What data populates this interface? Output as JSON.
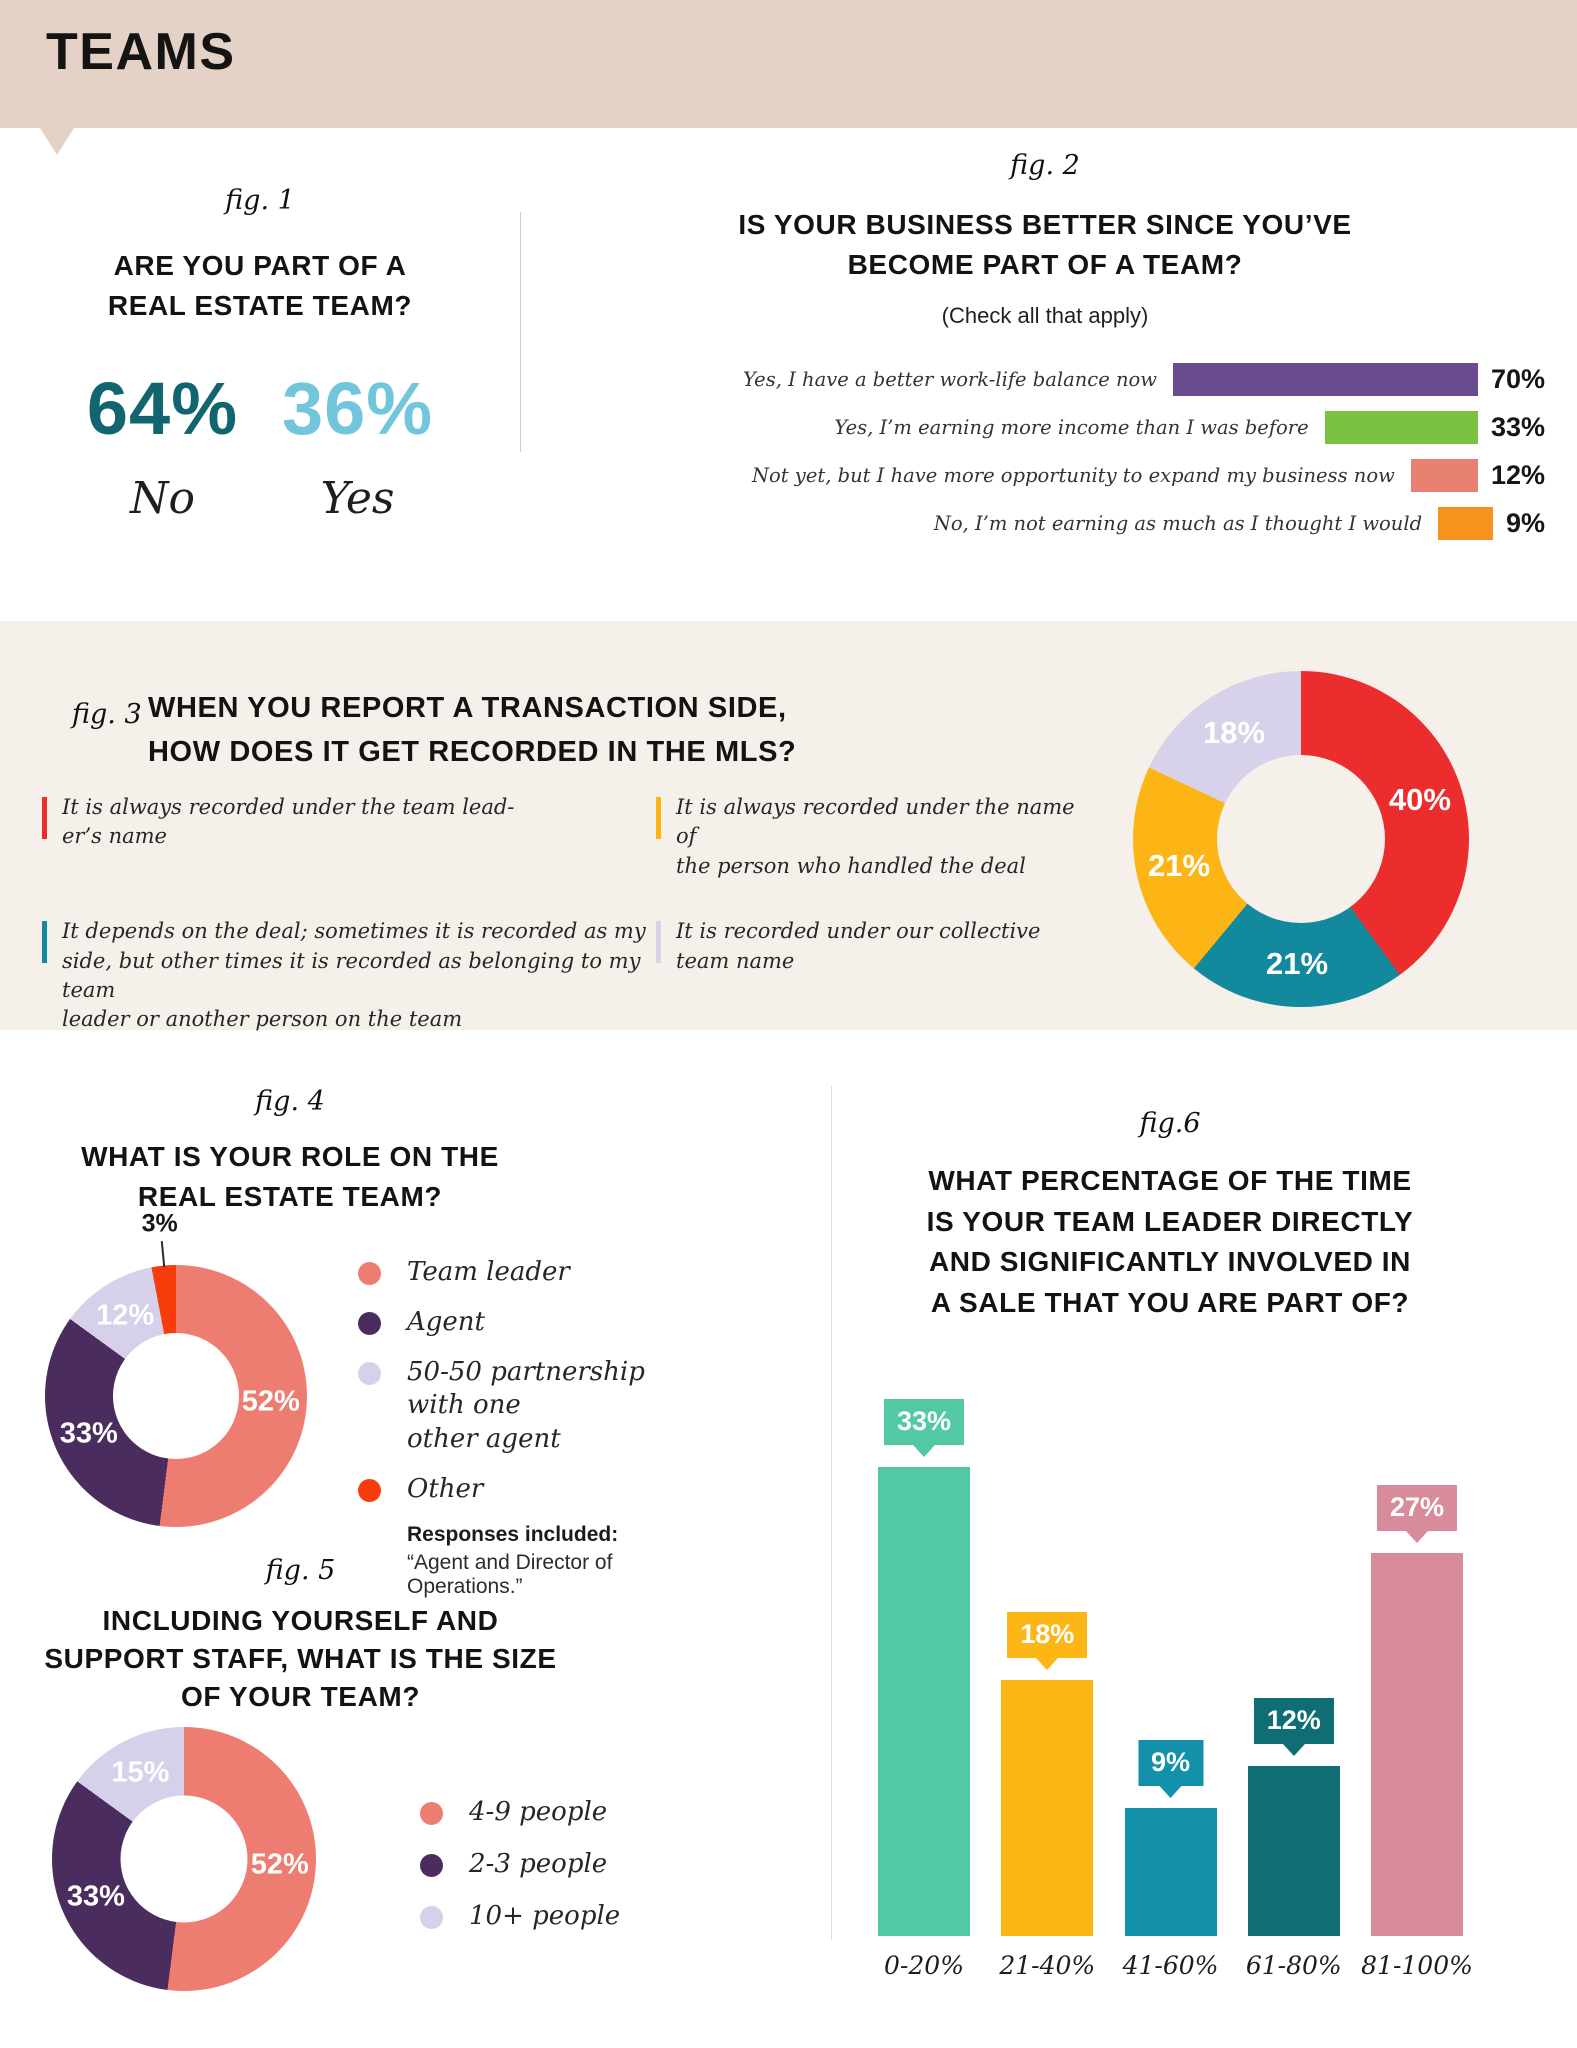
{
  "header": {
    "title": "TEAMS"
  },
  "figs": {
    "fig1": {
      "tag": "fig. 1"
    },
    "fig2": {
      "tag": "fig. 2"
    },
    "fig3": {
      "tag": "fig. 3"
    },
    "fig4": {
      "tag": "fig. 4"
    },
    "fig5": {
      "tag": "fig. 5"
    },
    "fig6": {
      "tag": "fig.6"
    }
  },
  "chart_data": [
    {
      "id": "fig1",
      "type": "big-number-pair",
      "title": "ARE YOU PART OF A\nREAL ESTATE TEAM?",
      "unit": "%",
      "items": [
        {
          "label": "No",
          "value": 64,
          "color": "#10656f"
        },
        {
          "label": "Yes",
          "value": 36,
          "color": "#72c6dc"
        }
      ]
    },
    {
      "id": "fig2",
      "type": "bar",
      "orientation": "horizontal",
      "title": "IS YOUR BUSINESS BETTER SINCE YOU’VE\nBECOME PART OF A TEAM?",
      "subtitle": "(Check all that apply)",
      "unit": "%",
      "xlim": [
        0,
        70
      ],
      "rows": [
        {
          "label": "Yes, I have a better work-life balance now",
          "value": 70,
          "color": "#6a4b8f"
        },
        {
          "label": "Yes, I’m earning more income than I was before",
          "value": 33,
          "color": "#7cc242"
        },
        {
          "label": "Not yet, but I have more opportunity to expand my business now",
          "value": 12,
          "color": "#e98172"
        },
        {
          "label": "No, I’m not earning as much as I thought I would",
          "value": 9,
          "color": "#f6921e"
        }
      ]
    },
    {
      "id": "fig3",
      "type": "donut",
      "title": "WHEN YOU REPORT A TRANSACTION SIDE,\nHOW DOES IT GET RECORDED IN THE MLS?",
      "unit": "%",
      "segments": [
        {
          "label": "It is always recorded under the team lead-\ner’s name",
          "value": 40,
          "color": "#eb2d2e"
        },
        {
          "label": "It depends on the deal; sometimes it is recorded as my\nside, but other times it is recorded as belonging to my team\nleader or another person on the team",
          "value": 21,
          "color": "#12899c"
        },
        {
          "label": "It is always recorded under the name of\nthe person who handled the deal",
          "value": 21,
          "color": "#fcb515"
        },
        {
          "label": "It is recorded under our collective\nteam name",
          "value": 18,
          "color": "#d7d2e9"
        }
      ]
    },
    {
      "id": "fig4",
      "type": "donut",
      "title": "WHAT IS YOUR ROLE ON THE\nREAL ESTATE TEAM?",
      "unit": "%",
      "segments": [
        {
          "label": "Team leader",
          "value": 52,
          "color": "#ee7d71"
        },
        {
          "label": "Agent",
          "value": 33,
          "color": "#4a2d5e"
        },
        {
          "label": "50-50 partnership with one\nother agent",
          "value": 12,
          "color": "#d6d0ea"
        },
        {
          "label": "Other",
          "value": 3,
          "color": "#f93c0c",
          "label_outside": true
        }
      ],
      "note_title": "Responses included:",
      "note_body": "“Agent and Director of Operations.”"
    },
    {
      "id": "fig5",
      "type": "donut",
      "title": "INCLUDING YOURSELF AND\nSUPPORT STAFF, WHAT IS THE SIZE\nOF YOUR TEAM?",
      "unit": "%",
      "segments": [
        {
          "label": "4-9 people",
          "value": 52,
          "color": "#ee7d71"
        },
        {
          "label": "2-3 people",
          "value": 33,
          "color": "#4a2d5e"
        },
        {
          "label": "10+ people",
          "value": 15,
          "color": "#d6d0ea"
        }
      ]
    },
    {
      "id": "fig6",
      "type": "bar",
      "orientation": "vertical",
      "title": "WHAT PERCENTAGE OF THE TIME\nIS YOUR TEAM LEADER DIRECTLY\nAND SIGNIFICANTLY INVOLVED IN\nA SALE THAT YOU ARE PART OF?",
      "unit": "%",
      "categories": [
        "0-20%",
        "21-40%",
        "41-60%",
        "61-80%",
        "81-100%"
      ],
      "values": [
        33,
        18,
        9,
        12,
        27
      ],
      "colors": [
        "#52c9a4",
        "#fcb716",
        "#1390aa",
        "#0e6e73",
        "#d78b9b"
      ],
      "ylim": [
        0,
        35
      ]
    }
  ]
}
